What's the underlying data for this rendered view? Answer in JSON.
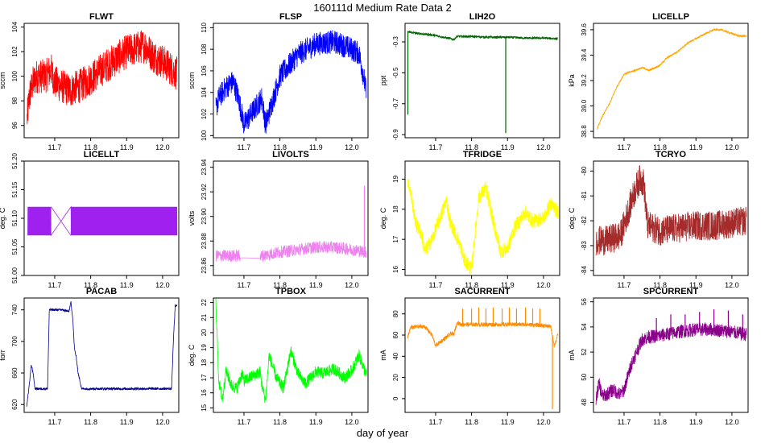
{
  "title": "160111d   Medium Rate Data 2",
  "xlabel": "day of year",
  "chart_data": [
    {
      "type": "line",
      "title": "FLWT",
      "ylabel": "sccm",
      "color": "#ff0000",
      "xlim": [
        11.615,
        12.045
      ],
      "ylim": [
        95,
        104.3
      ],
      "xticks": [
        11.7,
        11.8,
        11.9,
        12.0
      ],
      "xtick_labels": [
        "11.7",
        "11.8",
        "11.9",
        "12.0"
      ],
      "yticks": [
        96,
        98,
        100,
        102,
        104
      ],
      "ytick_labels": [
        "96",
        "98",
        "100",
        "102",
        "104"
      ],
      "x": [
        11.623,
        11.63,
        11.64,
        11.65,
        11.66,
        11.675,
        11.69,
        11.7,
        11.745,
        11.75,
        11.77,
        11.8,
        11.85,
        11.9,
        11.95,
        11.975,
        12.0,
        12.04
      ],
      "y": [
        96.5,
        98.5,
        99.5,
        100,
        100,
        100,
        100.5,
        99.5,
        98.8,
        99,
        99.2,
        99.8,
        101,
        102,
        102.5,
        101.6,
        101.2,
        100.2
      ],
      "noise": 2.8
    },
    {
      "type": "line",
      "title": "FLSP",
      "ylabel": "sccm",
      "color": "#0000ff",
      "xlim": [
        11.615,
        12.045
      ],
      "ylim": [
        99.8,
        110.4
      ],
      "xticks": [
        11.7,
        11.8,
        11.9,
        12.0
      ],
      "xtick_labels": [
        "11.7",
        "11.8",
        "11.9",
        "12.0"
      ],
      "yticks": [
        100,
        102,
        104,
        106,
        108,
        110
      ],
      "ytick_labels": [
        "100",
        "102",
        "104",
        "106",
        "108",
        "110"
      ],
      "x": [
        11.622,
        11.63,
        11.65,
        11.67,
        11.685,
        11.7,
        11.75,
        11.76,
        11.8,
        11.85,
        11.9,
        11.95,
        11.98,
        12.0,
        12.02,
        12.03,
        12.04
      ],
      "y": [
        102.5,
        103.5,
        104.5,
        105,
        103.5,
        101,
        103.5,
        101,
        105.5,
        107.5,
        108.5,
        108.7,
        108.3,
        108,
        107.6,
        106,
        104
      ],
      "noise": 2.2
    },
    {
      "type": "line",
      "title": "LIH2O",
      "ylabel": "ppt",
      "color": "#006400",
      "xlim": [
        11.615,
        12.045
      ],
      "ylim": [
        -0.92,
        -0.18
      ],
      "xticks": [
        11.7,
        11.8,
        11.9,
        12.0
      ],
      "xtick_labels": [
        "11.7",
        "11.8",
        "11.9",
        "12.0"
      ],
      "yticks": [
        -0.9,
        -0.7,
        -0.5,
        -0.3
      ],
      "ytick_labels": [
        "-0.9",
        "-0.7",
        "-0.5",
        "-0.3"
      ],
      "x": [
        11.622,
        11.65,
        11.69,
        11.745,
        11.75,
        11.76,
        11.8,
        11.85,
        11.9,
        11.95,
        12.0,
        12.04
      ],
      "y": [
        -0.235,
        -0.245,
        -0.255,
        -0.28,
        -0.285,
        -0.265,
        -0.265,
        -0.27,
        -0.27,
        -0.275,
        -0.275,
        -0.28
      ],
      "noise": 0.015,
      "spikes": [
        {
          "x": 11.623,
          "y": -0.77
        },
        {
          "x": 11.895,
          "y": -0.89
        }
      ]
    },
    {
      "type": "line",
      "title": "LICELLP",
      "ylabel": "kPa",
      "color": "#ffa500",
      "xlim": [
        11.615,
        12.045
      ],
      "ylim": [
        38.75,
        39.65
      ],
      "xticks": [
        11.7,
        11.8,
        11.9,
        12.0
      ],
      "xtick_labels": [
        "11.7",
        "11.8",
        "11.9",
        "12.0"
      ],
      "yticks": [
        38.8,
        39.0,
        39.2,
        39.4,
        39.6
      ],
      "ytick_labels": [
        "38.8",
        "39.0",
        "39.2",
        "39.4",
        "39.6"
      ],
      "x": [
        11.625,
        11.64,
        11.66,
        11.68,
        11.7,
        11.75,
        11.77,
        11.8,
        11.82,
        11.85,
        11.88,
        11.92,
        11.95,
        11.97,
        11.99,
        12.02,
        12.04
      ],
      "y": [
        38.82,
        38.92,
        39.02,
        39.15,
        39.25,
        39.3,
        39.28,
        39.32,
        39.38,
        39.43,
        39.5,
        39.56,
        39.6,
        39.6,
        39.58,
        39.55,
        39.55
      ],
      "noise": 0.015
    },
    {
      "type": "line",
      "title": "LICELLT",
      "ylabel": "deg. C",
      "color": "#a020f0",
      "xlim": [
        11.615,
        12.045
      ],
      "ylim": [
        51.0,
        51.2
      ],
      "xticks": [
        11.7,
        11.8,
        11.9,
        12.0
      ],
      "xtick_labels": [
        "11.7",
        "11.8",
        "11.9",
        "12.0"
      ],
      "yticks": [
        51.0,
        51.05,
        51.1,
        51.15,
        51.2
      ],
      "ytick_labels": [
        "51.00",
        "51.05",
        "51.10",
        "51.15",
        "51.20"
      ],
      "x": [
        11.625,
        11.66,
        11.69,
        11.745,
        11.75,
        11.85,
        11.95,
        12.04
      ],
      "y": [
        51.09,
        51.09,
        51.09,
        51.09,
        51.09,
        51.09,
        51.09,
        51.09
      ],
      "levels": [
        51.07,
        51.12
      ],
      "gap": [
        11.69,
        11.745
      ]
    },
    {
      "type": "line",
      "title": "LIVOLTS",
      "ylabel": "volts",
      "color": "#ee82ee",
      "xlim": [
        11.615,
        12.045
      ],
      "ylim": [
        23.852,
        23.945
      ],
      "xticks": [
        11.7,
        11.8,
        11.9,
        12.0
      ],
      "xtick_labels": [
        "11.7",
        "11.8",
        "11.9",
        "12.0"
      ],
      "yticks": [
        23.86,
        23.88,
        23.9,
        23.92,
        23.94
      ],
      "ytick_labels": [
        "23.86",
        "23.88",
        "23.90",
        "23.92",
        "23.94"
      ],
      "x": [
        11.622,
        11.65,
        11.69,
        11.745,
        11.75,
        11.8,
        11.85,
        11.9,
        11.95,
        12.0,
        12.04
      ],
      "y": [
        23.868,
        23.868,
        23.868,
        23.866,
        23.868,
        23.871,
        23.873,
        23.875,
        23.875,
        23.873,
        23.871
      ],
      "noise": 0.01,
      "gap": [
        11.69,
        11.745
      ],
      "spikes": [
        {
          "x": 12.035,
          "y": 23.925
        }
      ]
    },
    {
      "type": "line",
      "title": "TFRIDGE",
      "ylabel": "deg. C",
      "color": "#ffff00",
      "xlim": [
        11.615,
        12.045
      ],
      "ylim": [
        15.8,
        19.6
      ],
      "xticks": [
        11.7,
        11.8,
        11.9,
        12.0
      ],
      "xtick_labels": [
        "11.7",
        "11.8",
        "11.9",
        "12.0"
      ],
      "yticks": [
        16,
        17,
        18,
        19
      ],
      "ytick_labels": [
        "16",
        "17",
        "18",
        "19"
      ],
      "x": [
        11.622,
        11.63,
        11.645,
        11.66,
        11.67,
        11.69,
        11.73,
        11.74,
        11.765,
        11.78,
        11.8,
        11.82,
        11.84,
        11.86,
        11.88,
        11.9,
        11.92,
        11.95,
        11.97,
        12.0,
        12.02,
        12.04
      ],
      "y": [
        19.0,
        18.6,
        17.5,
        17.2,
        16.6,
        17.0,
        18.3,
        17.6,
        16.9,
        16.3,
        16.0,
        18.4,
        18.7,
        17.6,
        16.6,
        16.7,
        17.4,
        17.9,
        17.6,
        17.7,
        18.2,
        17.9
      ],
      "noise": 0.5
    },
    {
      "type": "line",
      "title": "TCRYO",
      "ylabel": "deg. C",
      "color": "#a52a2a",
      "xlim": [
        11.615,
        12.045
      ],
      "ylim": [
        -84.2,
        -79.6
      ],
      "xticks": [
        11.7,
        11.8,
        11.9,
        12.0
      ],
      "xtick_labels": [
        "11.7",
        "11.8",
        "11.9",
        "12.0"
      ],
      "yticks": [
        -84,
        -83,
        -82,
        -81,
        -80
      ],
      "ytick_labels": [
        "-84",
        "-83",
        "-82",
        "-81",
        "-80"
      ],
      "x": [
        11.622,
        11.65,
        11.69,
        11.73,
        11.745,
        11.755,
        11.765,
        11.8,
        11.85,
        11.9,
        11.95,
        12.0,
        12.04
      ],
      "y": [
        -82.8,
        -82.8,
        -82.6,
        -80.8,
        -80.3,
        -80.5,
        -82.2,
        -82.4,
        -82.3,
        -82.2,
        -82.2,
        -82.1,
        -82.0
      ],
      "noise": 1.2
    },
    {
      "type": "line",
      "title": "PACAB",
      "ylabel": "torr",
      "color": "#00008b",
      "xlim": [
        11.615,
        12.045
      ],
      "ylim": [
        610,
        755
      ],
      "xticks": [
        11.7,
        11.8,
        11.9,
        12.0
      ],
      "xtick_labels": [
        "11.7",
        "11.8",
        "11.9",
        "12.0"
      ],
      "yticks": [
        620,
        660,
        700,
        740
      ],
      "ytick_labels": [
        "620",
        "660",
        "700",
        "740"
      ],
      "x": [
        11.622,
        11.628,
        11.635,
        11.64,
        11.645,
        11.65,
        11.67,
        11.68,
        11.685,
        11.72,
        11.74,
        11.745,
        11.75,
        11.755,
        11.76,
        11.765,
        11.775,
        11.8,
        11.9,
        12.0,
        12.025,
        12.03,
        12.035,
        12.04
      ],
      "y": [
        618,
        640,
        670,
        660,
        640,
        640,
        640,
        640,
        740,
        740,
        738,
        750,
        730,
        690,
        680,
        660,
        640,
        640,
        640,
        640,
        640,
        700,
        745,
        745
      ],
      "noise": 3
    },
    {
      "type": "line",
      "title": "TPBOX",
      "ylabel": "deg. C",
      "color": "#00ff00",
      "xlim": [
        11.615,
        12.045
      ],
      "ylim": [
        14.7,
        22.3
      ],
      "xticks": [
        11.7,
        11.8,
        11.9,
        12.0
      ],
      "xtick_labels": [
        "11.7",
        "11.8",
        "11.9",
        "12.0"
      ],
      "yticks": [
        15,
        16,
        17,
        18,
        19,
        20,
        21,
        22
      ],
      "ytick_labels": [
        "15",
        "16",
        "17",
        "18",
        "19",
        "20",
        "21",
        "22"
      ],
      "x": [
        11.622,
        11.63,
        11.64,
        11.65,
        11.665,
        11.68,
        11.695,
        11.7,
        11.745,
        11.75,
        11.76,
        11.77,
        11.79,
        11.81,
        11.83,
        11.85,
        11.87,
        11.9,
        11.92,
        11.95,
        11.98,
        12.0,
        12.02,
        12.04
      ],
      "y": [
        22.0,
        16.8,
        15.5,
        17.5,
        16.5,
        16.3,
        17.3,
        16.8,
        17.4,
        16.5,
        15.5,
        18.5,
        17.0,
        16.3,
        18.8,
        17.3,
        16.6,
        17.4,
        17.3,
        17.6,
        17.0,
        17.5,
        18.5,
        17.2
      ],
      "noise": 0.8
    },
    {
      "type": "line",
      "title": "SACURRENT",
      "ylabel": "mA",
      "color": "#ff8c00",
      "xlim": [
        11.615,
        12.045
      ],
      "ylim": [
        -13,
        95
      ],
      "xticks": [
        11.7,
        11.8,
        11.9,
        12.0
      ],
      "xtick_labels": [
        "11.7",
        "11.8",
        "11.9",
        "12.0"
      ],
      "yticks": [
        0,
        20,
        40,
        60,
        80
      ],
      "ytick_labels": [
        "0",
        "20",
        "40",
        "60",
        "80"
      ],
      "x": [
        11.622,
        11.63,
        11.65,
        11.67,
        11.69,
        11.7,
        11.745,
        11.75,
        11.76,
        11.77,
        11.8,
        11.85,
        11.9,
        11.95,
        12.0,
        12.02,
        12.03,
        12.04
      ],
      "y": [
        57,
        67,
        68,
        68,
        60,
        50,
        62,
        60,
        72,
        70,
        70,
        70,
        70,
        70,
        69,
        68,
        50,
        60
      ],
      "noise": 4,
      "spikes": [
        {
          "x": 11.775,
          "y": 85
        },
        {
          "x": 11.8,
          "y": 85
        },
        {
          "x": 11.82,
          "y": 86
        },
        {
          "x": 11.84,
          "y": 85
        },
        {
          "x": 11.86,
          "y": 86
        },
        {
          "x": 11.885,
          "y": 85
        },
        {
          "x": 11.905,
          "y": 86
        },
        {
          "x": 11.925,
          "y": 85
        },
        {
          "x": 11.95,
          "y": 86
        },
        {
          "x": 11.97,
          "y": 85
        },
        {
          "x": 11.99,
          "y": 85
        },
        {
          "x": 12.025,
          "y": -10
        }
      ]
    },
    {
      "type": "line",
      "title": "SPCURRENT",
      "ylabel": "mA",
      "color": "#8b008b",
      "xlim": [
        11.615,
        12.045
      ],
      "ylim": [
        47.2,
        56.3
      ],
      "xticks": [
        11.7,
        11.8,
        11.9,
        12.0
      ],
      "xtick_labels": [
        "11.7",
        "11.8",
        "11.9",
        "12.0"
      ],
      "yticks": [
        48,
        50,
        52,
        54,
        56
      ],
      "ytick_labels": [
        "48",
        "50",
        "52",
        "54",
        "56"
      ],
      "x": [
        11.622,
        11.63,
        11.64,
        11.65,
        11.67,
        11.69,
        11.7,
        11.72,
        11.75,
        11.77,
        11.8,
        11.85,
        11.9,
        11.95,
        12.0,
        12.04
      ],
      "y": [
        48.2,
        49.5,
        48.5,
        48.6,
        49,
        48.6,
        49,
        51,
        53,
        53.2,
        53.3,
        53.6,
        53.8,
        53.8,
        53.6,
        53.4
      ],
      "noise": 1.1,
      "spikes": [
        {
          "x": 11.79,
          "y": 54.7
        },
        {
          "x": 11.83,
          "y": 55.0
        },
        {
          "x": 11.87,
          "y": 55.0
        },
        {
          "x": 11.91,
          "y": 55.2
        },
        {
          "x": 11.95,
          "y": 55.4
        },
        {
          "x": 11.99,
          "y": 55.3
        },
        {
          "x": 12.03,
          "y": 55.0
        }
      ]
    }
  ]
}
